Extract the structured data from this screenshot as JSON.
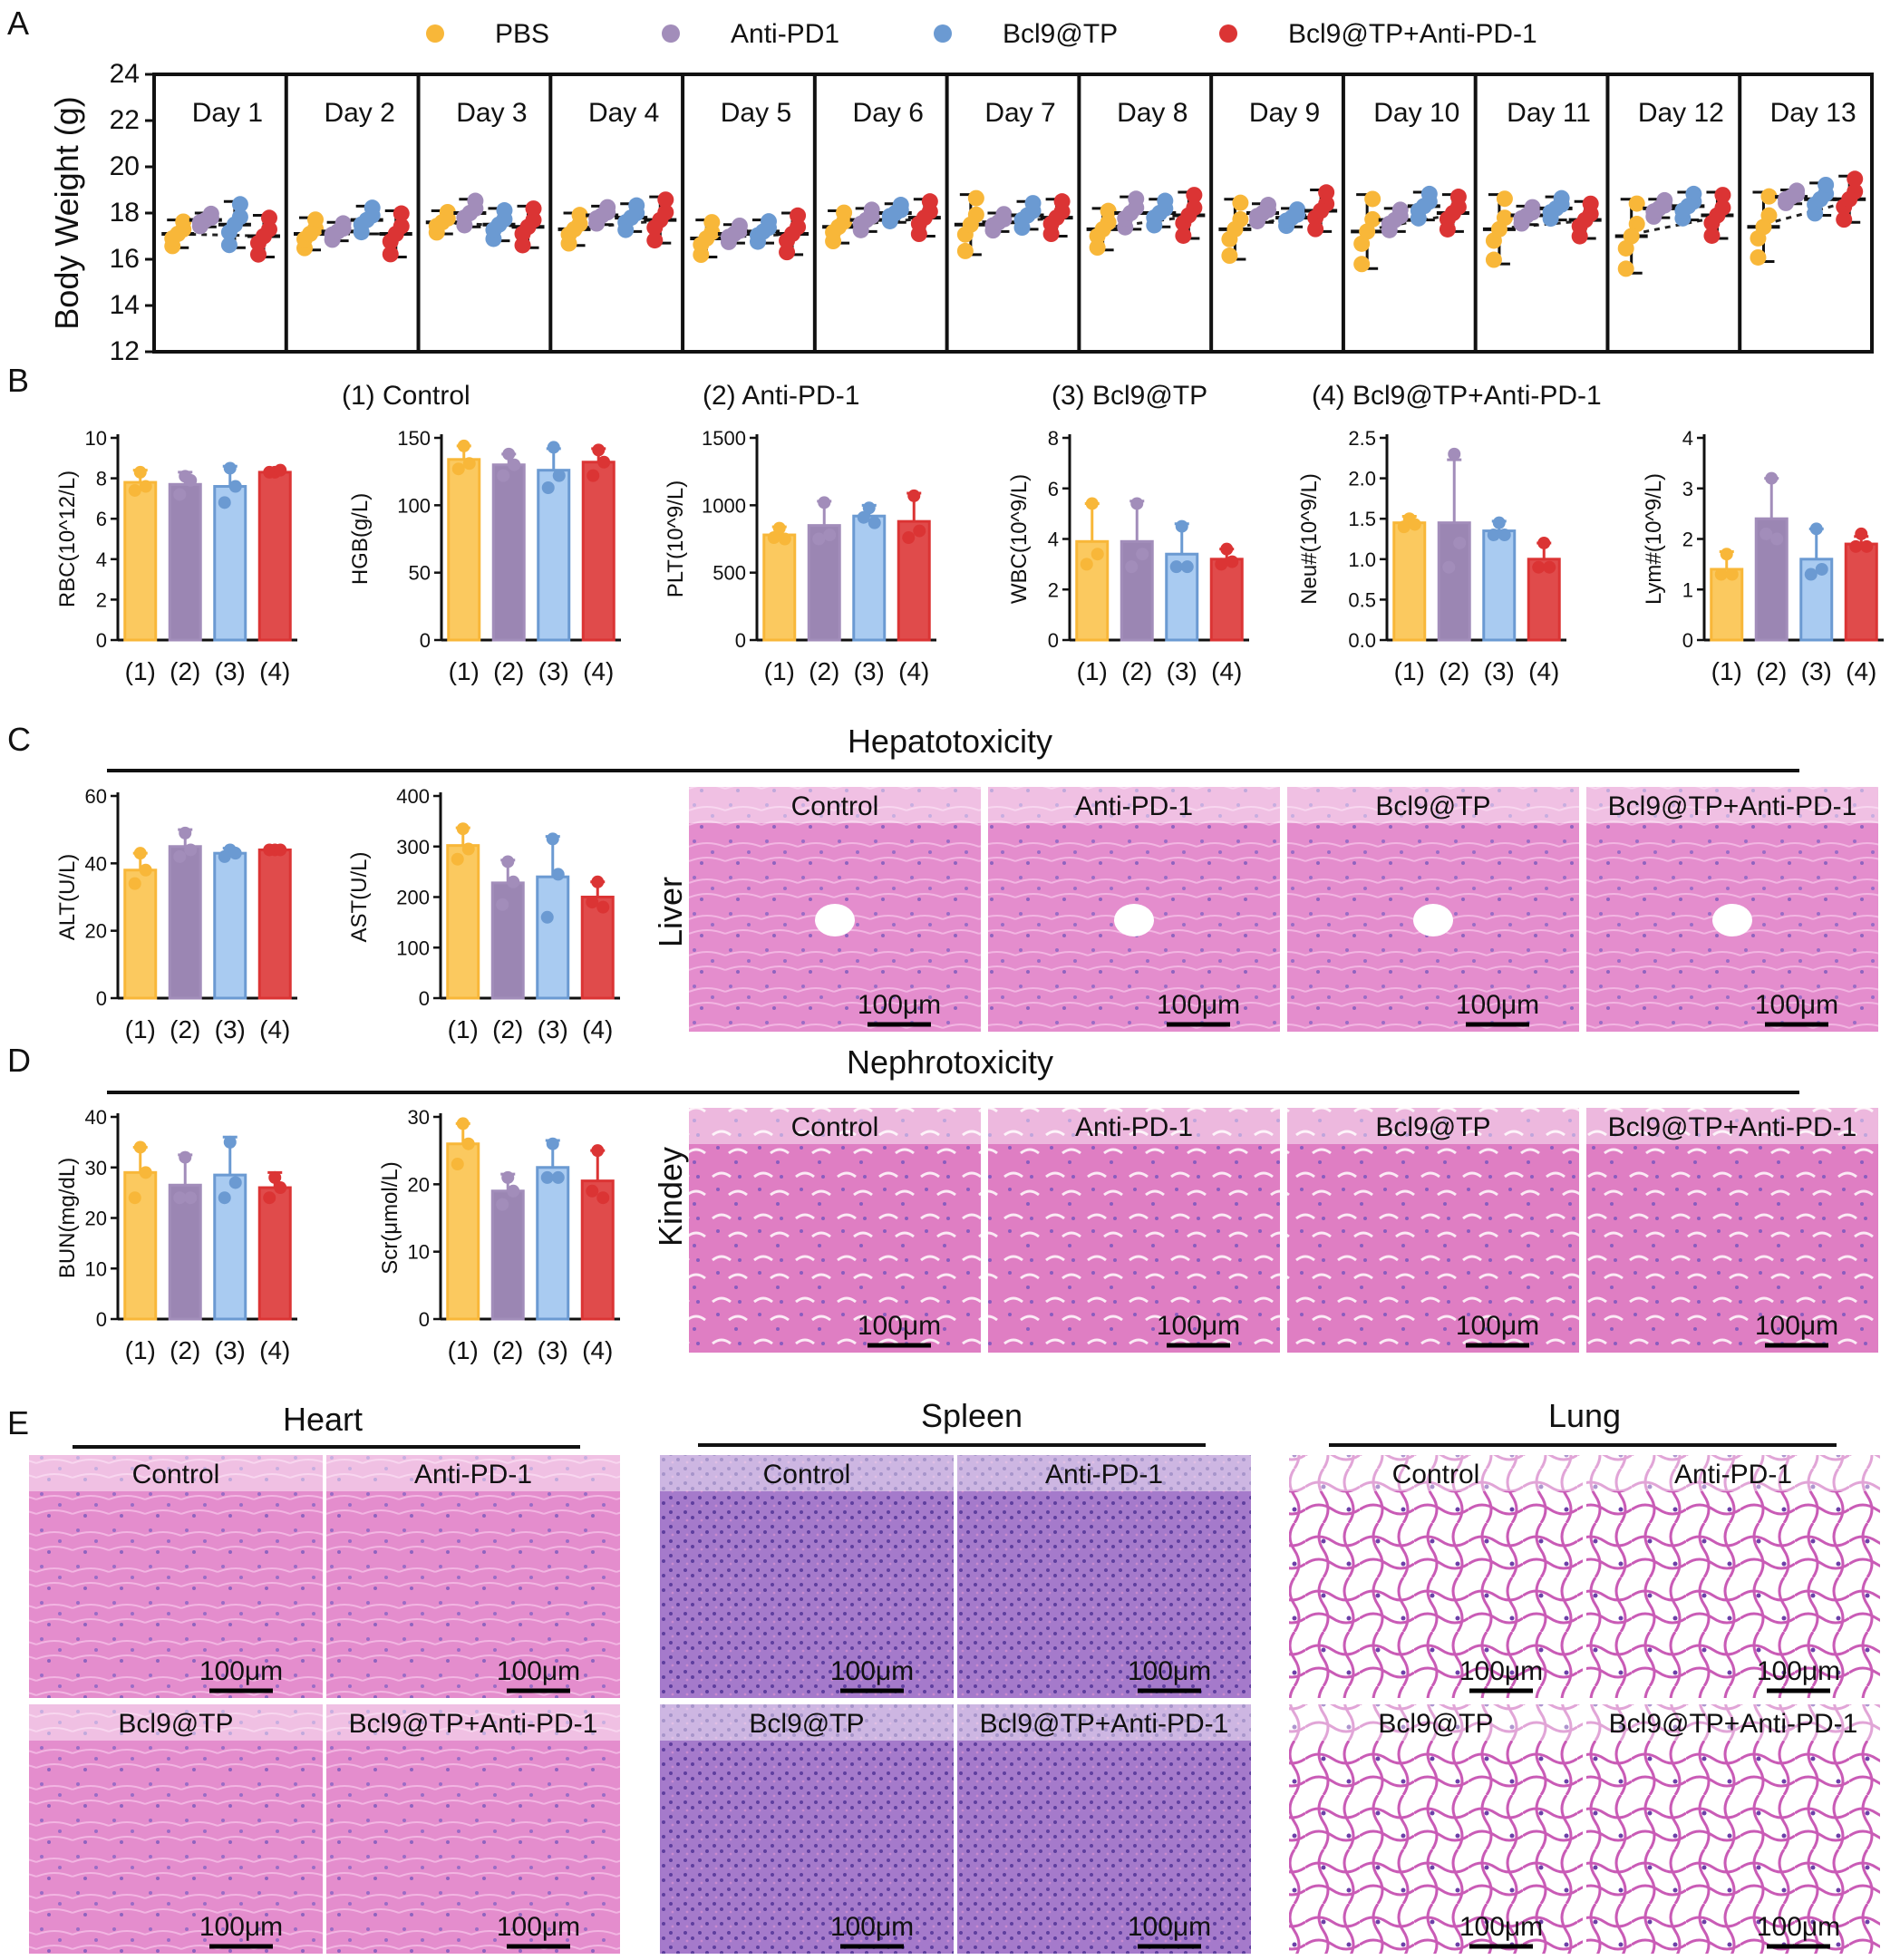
{
  "figure": {
    "panel_labels": [
      "A",
      "B",
      "C",
      "D",
      "E"
    ],
    "groups_header": [
      "(1) Control",
      "(2) Anti-PD-1",
      "(3) Bcl9@TP",
      "(4) Bcl9@TP+Anti-PD-1"
    ],
    "hepatotoxicity_title": "Hepatotoxicity",
    "nephrotoxicity_title": "Nephrotoxicity",
    "liver_label": "Liver",
    "kidney_label": "Kindey",
    "scale_bar": "100μm",
    "histology_headers": [
      "Control",
      "Anti-PD-1",
      "Bcl9@TP",
      "Bcl9@TP+Anti-PD-1"
    ],
    "organ_titles": [
      "Heart",
      "Spleen",
      "Lung"
    ],
    "colors": {
      "pbs": "#F8B739",
      "anti": "#A28DBA",
      "bcl9": "#6B9AD2",
      "combo": "#DB3434",
      "he_pink": "#E07CC4",
      "he_purple": "#9A6CC6"
    }
  },
  "chart_data": [
    {
      "id": "body-weight",
      "type": "scatter",
      "title": "",
      "ylabel": "Body Weight (g)",
      "ylim": [
        12,
        24
      ],
      "yticks": [
        12,
        14,
        16,
        18,
        20,
        22,
        24
      ],
      "legend": [
        "PBS",
        "Anti-PD1",
        "Bcl9@TP",
        "Bcl9@TP+Anti-PD-1"
      ],
      "legend_position": "top",
      "days": [
        "Day 1",
        "Day 2",
        "Day 3",
        "Day 4",
        "Day 5",
        "Day 6",
        "Day 7",
        "Day 8",
        "Day 9",
        "Day 10",
        "Day 11",
        "Day 12",
        "Day 13"
      ],
      "means": [
        [
          17.1,
          17.7,
          17.5,
          17.0
        ],
        [
          17.1,
          17.2,
          17.7,
          17.1
        ],
        [
          17.6,
          18.0,
          17.5,
          17.4
        ],
        [
          17.3,
          17.9,
          17.8,
          17.7
        ],
        [
          16.9,
          17.1,
          17.2,
          17.1
        ],
        [
          17.4,
          17.7,
          18.0,
          17.8
        ],
        [
          17.5,
          17.6,
          17.9,
          17.8
        ],
        [
          17.3,
          18.0,
          18.0,
          17.9
        ],
        [
          17.3,
          18.0,
          17.8,
          18.1
        ],
        [
          17.2,
          17.7,
          18.3,
          18.0
        ],
        [
          17.3,
          17.9,
          18.2,
          17.7
        ],
        [
          17.0,
          18.2,
          18.3,
          17.9
        ],
        [
          17.4,
          18.7,
          18.6,
          18.6
        ]
      ],
      "sd": [
        [
          0.6,
          0.3,
          1.0,
          0.9
        ],
        [
          0.7,
          0.4,
          0.6,
          1.0
        ],
        [
          0.5,
          0.6,
          0.7,
          0.9
        ],
        [
          0.7,
          0.4,
          0.6,
          1.0
        ],
        [
          0.8,
          0.4,
          0.5,
          0.9
        ],
        [
          0.7,
          0.5,
          0.4,
          0.8
        ],
        [
          1.3,
          0.4,
          0.6,
          0.8
        ],
        [
          0.9,
          0.7,
          0.6,
          1.0
        ],
        [
          1.3,
          0.4,
          0.4,
          0.9
        ],
        [
          1.6,
          0.5,
          0.6,
          0.8
        ],
        [
          1.5,
          0.4,
          0.5,
          0.8
        ],
        [
          1.6,
          0.4,
          0.6,
          1.0
        ],
        [
          1.5,
          0.3,
          0.7,
          1.0
        ]
      ],
      "offsets": [
        -0.8,
        -0.3,
        0.3,
        0.8,
        0.0
      ]
    },
    {
      "id": "rbc",
      "type": "bar",
      "categories": [
        "(1)",
        "(2)",
        "(3)",
        "(4)"
      ],
      "values": [
        7.8,
        7.7,
        7.6,
        8.3
      ],
      "sd": [
        0.6,
        0.6,
        1.0,
        0.1
      ],
      "points": [
        [
          8.3,
          7.4,
          7.6
        ],
        [
          8.1,
          7.2,
          7.9
        ],
        [
          8.5,
          6.8,
          7.6
        ],
        [
          8.3,
          8.3,
          8.4
        ]
      ],
      "ylabel": "RBC(10^12/L)",
      "ylim": [
        0,
        10
      ],
      "yticks": [
        0,
        2,
        4,
        6,
        8,
        10
      ]
    },
    {
      "id": "hgb",
      "type": "bar",
      "categories": [
        "(1)",
        "(2)",
        "(3)",
        "(4)"
      ],
      "values": [
        134,
        130,
        126,
        132
      ],
      "sd": [
        10,
        8,
        16,
        10
      ],
      "points": [
        [
          144,
          127,
          131
        ],
        [
          138,
          122,
          130
        ],
        [
          143,
          113,
          122
        ],
        [
          141,
          122,
          132
        ]
      ],
      "ylabel": "HGB(g/L)",
      "ylim": [
        0,
        150
      ],
      "yticks": [
        0,
        50,
        100,
        150
      ]
    },
    {
      "id": "plt",
      "type": "bar",
      "categories": [
        "(1)",
        "(2)",
        "(3)",
        "(4)"
      ],
      "values": [
        780,
        850,
        920,
        880
      ],
      "sd": [
        60,
        180,
        80,
        210
      ],
      "points": [
        [
          830,
          760,
          750
        ],
        [
          1020,
          750,
          780
        ],
        [
          980,
          910,
          870
        ],
        [
          1070,
          760,
          810
        ]
      ],
      "ylabel": "PLT(10^9/L)",
      "ylim": [
        0,
        1500
      ],
      "yticks": [
        0,
        500,
        1000,
        1500
      ]
    },
    {
      "id": "wbc",
      "type": "bar",
      "categories": [
        "(1)",
        "(2)",
        "(3)",
        "(4)"
      ],
      "values": [
        3.9,
        3.9,
        3.4,
        3.2
      ],
      "sd": [
        1.5,
        1.6,
        1.2,
        0.4
      ],
      "points": [
        [
          5.4,
          3.0,
          3.4
        ],
        [
          5.4,
          2.9,
          3.4
        ],
        [
          4.5,
          2.9,
          2.9
        ],
        [
          3.6,
          3.0,
          3.1
        ]
      ],
      "ylabel": "WBC(10^9/L)",
      "ylim": [
        0,
        8
      ],
      "yticks": [
        0,
        2,
        4,
        6,
        8
      ]
    },
    {
      "id": "neu",
      "type": "bar",
      "categories": [
        "(1)",
        "(2)",
        "(3)",
        "(4)"
      ],
      "values": [
        1.45,
        1.45,
        1.35,
        1.0
      ],
      "sd": [
        0.08,
        0.78,
        0.12,
        0.2
      ],
      "points": [
        [
          1.5,
          1.4,
          1.43
        ],
        [
          2.3,
          0.9,
          1.2
        ],
        [
          1.45,
          1.3,
          1.3
        ],
        [
          1.2,
          0.9,
          0.9
        ]
      ],
      "ylabel": "Neu#(10^9/L)",
      "ylim": [
        0,
        2.5
      ],
      "yticks": [
        0,
        0.5,
        1.0,
        1.5,
        2.0,
        2.5
      ],
      "tick_labels": [
        "0.0",
        "0.5",
        "1.0",
        "1.5",
        "2.0",
        "2.5"
      ]
    },
    {
      "id": "lym",
      "type": "bar",
      "categories": [
        "(1)",
        "(2)",
        "(3)",
        "(4)"
      ],
      "values": [
        1.4,
        2.4,
        1.6,
        1.9
      ],
      "sd": [
        0.35,
        0.8,
        0.6,
        0.15
      ],
      "points": [
        [
          1.7,
          1.3,
          1.3
        ],
        [
          3.2,
          2.1,
          2.0
        ],
        [
          2.2,
          1.3,
          1.4
        ],
        [
          2.1,
          1.85,
          1.85
        ]
      ],
      "ylabel": "Lym#(10^9/L)",
      "ylim": [
        0,
        4
      ],
      "yticks": [
        0,
        1,
        2,
        3,
        4
      ]
    },
    {
      "id": "alt",
      "type": "bar",
      "categories": [
        "(1)",
        "(2)",
        "(3)",
        "(4)"
      ],
      "values": [
        38,
        45,
        43,
        44
      ],
      "sd": [
        5,
        5,
        1.5,
        0.5
      ],
      "points": [
        [
          43,
          34,
          38
        ],
        [
          49,
          42,
          44
        ],
        [
          44,
          42,
          43
        ],
        [
          44,
          44,
          44
        ]
      ],
      "ylabel": "ALT(U/L)",
      "ylim": [
        0,
        60
      ],
      "yticks": [
        0,
        20,
        40,
        60
      ]
    },
    {
      "id": "ast",
      "type": "bar",
      "categories": [
        "(1)",
        "(2)",
        "(3)",
        "(4)"
      ],
      "values": [
        302,
        228,
        240,
        200
      ],
      "sd": [
        35,
        45,
        80,
        30
      ],
      "points": [
        [
          335,
          275,
          295
        ],
        [
          270,
          185,
          230
        ],
        [
          315,
          160,
          245
        ],
        [
          230,
          190,
          180
        ]
      ],
      "ylabel": "AST(U/L)",
      "ylim": [
        0,
        400
      ],
      "yticks": [
        0,
        100,
        200,
        300,
        400
      ]
    },
    {
      "id": "bun",
      "type": "bar",
      "categories": [
        "(1)",
        "(2)",
        "(3)",
        "(4)"
      ],
      "values": [
        29,
        26.5,
        28.5,
        26
      ],
      "sd": [
        5,
        6,
        7.5,
        3
      ],
      "points": [
        [
          34,
          24,
          29
        ],
        [
          32,
          24,
          24
        ],
        [
          35,
          24,
          27
        ],
        [
          28,
          24,
          26
        ]
      ],
      "ylabel": "BUN(mg/dL)",
      "ylim": [
        0,
        40
      ],
      "yticks": [
        0,
        10,
        20,
        30,
        40
      ]
    },
    {
      "id": "scr",
      "type": "bar",
      "categories": [
        "(1)",
        "(2)",
        "(3)",
        "(4)"
      ],
      "values": [
        26,
        19,
        22.5,
        20.5
      ],
      "sd": [
        3,
        2.5,
        4,
        4.5
      ],
      "points": [
        [
          29,
          23,
          26
        ],
        [
          21,
          17,
          19
        ],
        [
          26,
          21,
          21
        ],
        [
          25,
          19,
          18
        ]
      ],
      "ylabel": "Scr(μmol/L)",
      "ylim": [
        0,
        30
      ],
      "yticks": [
        0,
        10,
        20,
        30
      ]
    }
  ]
}
